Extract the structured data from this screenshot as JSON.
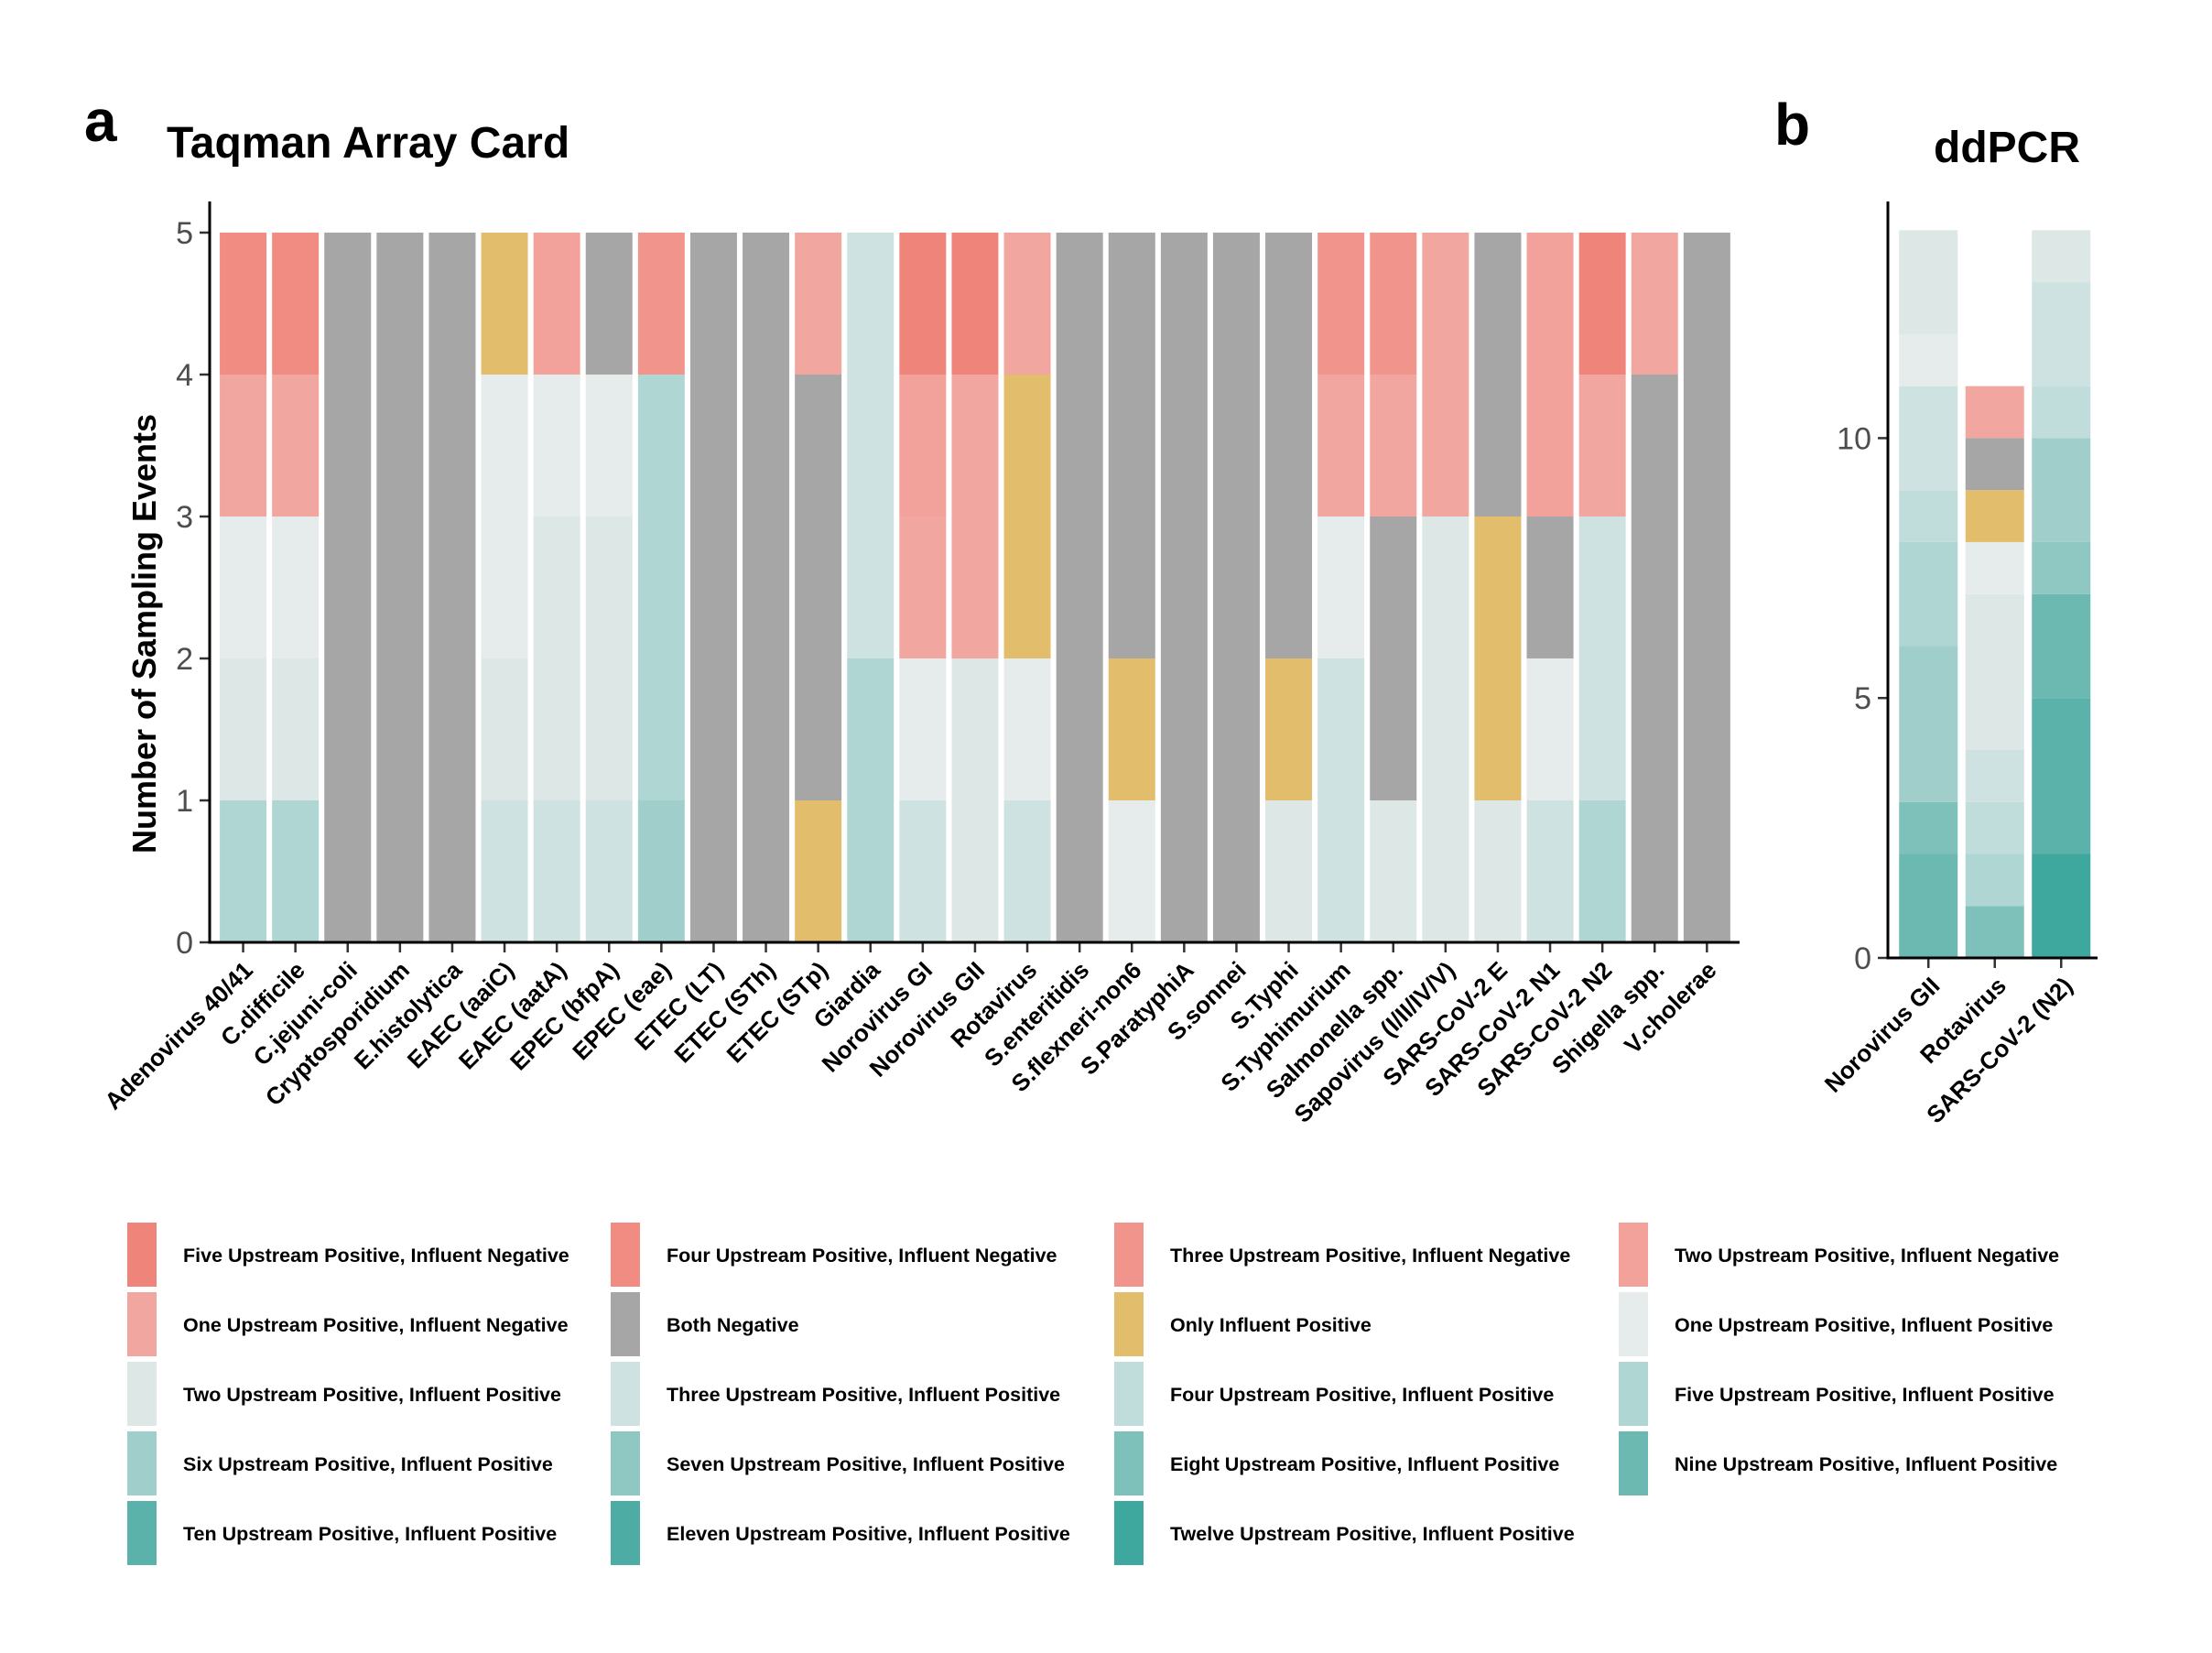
{
  "chart_data": [
    {
      "panel": "a",
      "title": "Taqman Array Card",
      "type": "bar",
      "stacked": true,
      "ylabel": "Number of Sampling Events",
      "xlabel": "",
      "ylim": [
        0,
        5
      ],
      "yticks": [
        "0",
        "1",
        "2",
        "3",
        "4",
        "5"
      ],
      "categories": [
        "Adenovirus 40/41",
        "C.difficile",
        "C.jejuni-coli",
        "Cryptosporidium",
        "E.histolytica",
        "EAEC (aaiC)",
        "EAEC (aatA)",
        "EPEC (bfpA)",
        "EPEC (eae)",
        "ETEC (LT)",
        "ETEC (STh)",
        "ETEC (STp)",
        "Giardia",
        "Norovirus GI",
        "Norovirus GII",
        "Rotavirus",
        "S.enteritidis",
        "S.flexneri-non6",
        "S.ParatyphiA",
        "S.sonnei",
        "S.Typhi",
        "S.Typhimurium",
        "Salmonella spp.",
        "Sapovirus (I/II/IV/V)",
        "SARS-CoV-2 E",
        "SARS-CoV-2 N1",
        "SARS-CoV-2 N2",
        "Shigella spp.",
        "V.cholerae"
      ],
      "stacks": [
        [
          [
            "5P",
            1
          ],
          [
            "2P",
            1
          ],
          [
            "1P",
            1
          ],
          [
            "1N",
            1
          ],
          [
            "4N",
            1
          ]
        ],
        [
          [
            "5P",
            1
          ],
          [
            "2P",
            1
          ],
          [
            "1P",
            1
          ],
          [
            "1N",
            1
          ],
          [
            "4N",
            1
          ]
        ],
        [
          [
            "BN",
            5
          ]
        ],
        [
          [
            "BN",
            5
          ]
        ],
        [
          [
            "BN",
            5
          ]
        ],
        [
          [
            "3P",
            1
          ],
          [
            "2P",
            1
          ],
          [
            "1P",
            2
          ],
          [
            "OI",
            1
          ]
        ],
        [
          [
            "3P",
            1
          ],
          [
            "2P",
            2
          ],
          [
            "1P",
            1
          ],
          [
            "2N",
            1
          ]
        ],
        [
          [
            "3P",
            1
          ],
          [
            "2P",
            2
          ],
          [
            "1P",
            1
          ],
          [
            "BN",
            1
          ]
        ],
        [
          [
            "6P",
            1
          ],
          [
            "5P",
            3
          ],
          [
            "3N",
            1
          ]
        ],
        [
          [
            "BN",
            5
          ]
        ],
        [
          [
            "BN",
            5
          ]
        ],
        [
          [
            "OI",
            1
          ],
          [
            "BN",
            3
          ],
          [
            "1N",
            1
          ]
        ],
        [
          [
            "5P",
            2
          ],
          [
            "3P",
            3
          ]
        ],
        [
          [
            "3P",
            1
          ],
          [
            "1P",
            1
          ],
          [
            "1N",
            1
          ],
          [
            "2N",
            1
          ],
          [
            "5N",
            1
          ]
        ],
        [
          [
            "2P",
            2
          ],
          [
            "1N",
            2
          ],
          [
            "5N",
            1
          ]
        ],
        [
          [
            "3P",
            1
          ],
          [
            "1P",
            1
          ],
          [
            "OI",
            2
          ],
          [
            "1N",
            1
          ]
        ],
        [
          [
            "BN",
            5
          ]
        ],
        [
          [
            "1P",
            1
          ],
          [
            "OI",
            1
          ],
          [
            "BN",
            3
          ]
        ],
        [
          [
            "BN",
            5
          ]
        ],
        [
          [
            "BN",
            5
          ]
        ],
        [
          [
            "2P",
            1
          ],
          [
            "OI",
            1
          ],
          [
            "BN",
            3
          ]
        ],
        [
          [
            "3P",
            2
          ],
          [
            "1P",
            1
          ],
          [
            "1N",
            1
          ],
          [
            "3N",
            1
          ]
        ],
        [
          [
            "2P",
            1
          ],
          [
            "BN",
            2
          ],
          [
            "1N",
            1
          ],
          [
            "3N",
            1
          ]
        ],
        [
          [
            "2P",
            3
          ],
          [
            "1N",
            2
          ]
        ],
        [
          [
            "2P",
            1
          ],
          [
            "OI",
            2
          ],
          [
            "BN",
            2
          ]
        ],
        [
          [
            "3P",
            1
          ],
          [
            "1P",
            1
          ],
          [
            "BN",
            1
          ],
          [
            "2N",
            2
          ]
        ],
        [
          [
            "5P",
            1
          ],
          [
            "3P",
            2
          ],
          [
            "1N",
            1
          ],
          [
            "5N",
            1
          ]
        ],
        [
          [
            "BN",
            4
          ],
          [
            "1N",
            1
          ]
        ],
        [
          [
            "BN",
            5
          ]
        ]
      ]
    },
    {
      "panel": "b",
      "title": "ddPCR",
      "type": "bar",
      "stacked": true,
      "xlabel": "",
      "ylabel": "",
      "ylim": [
        0,
        14.5
      ],
      "ytick_values": [
        0,
        5,
        10
      ],
      "yticks": [
        "0",
        "5",
        "10"
      ],
      "categories": [
        "Norovirus GII",
        "Rotavirus",
        "SARS-CoV-2 (N2)"
      ],
      "stacks": [
        [
          [
            "9P",
            2
          ],
          [
            "8P",
            1
          ],
          [
            "6P",
            3
          ],
          [
            "5P",
            2
          ],
          [
            "4P",
            1
          ],
          [
            "3P",
            2
          ],
          [
            "1P",
            1
          ],
          [
            "2P",
            2
          ]
        ],
        [
          [
            "8P",
            1
          ],
          [
            "5P",
            1
          ],
          [
            "4P",
            1
          ],
          [
            "3P",
            1
          ],
          [
            "2P",
            3
          ],
          [
            "1P",
            1
          ],
          [
            "OI",
            1
          ],
          [
            "BN",
            1
          ],
          [
            "1N",
            1
          ]
        ],
        [
          [
            "12P",
            2
          ],
          [
            "10P",
            3
          ],
          [
            "9P",
            2
          ],
          [
            "7P",
            1
          ],
          [
            "6P",
            2
          ],
          [
            "4P",
            1
          ],
          [
            "3P",
            2
          ],
          [
            "2P",
            1
          ]
        ]
      ]
    }
  ],
  "legend": [
    {
      "key": "5N",
      "label": "Five Upstream Positive, Influent Negative",
      "color": "#ef857a"
    },
    {
      "key": "4N",
      "label": "Four Upstream Positive, Influent Negative",
      "color": "#f08c82"
    },
    {
      "key": "3N",
      "label": "Three Upstream Positive, Influent Negative",
      "color": "#f1958c"
    },
    {
      "key": "2N",
      "label": "Two Upstream Positive, Influent Negative",
      "color": "#f2a29b"
    },
    {
      "key": "1N",
      "label": "One Upstream Positive, Influent Negative",
      "color": "#f2a6a0"
    },
    {
      "key": "BN",
      "label": "Both Negative",
      "color": "#a6a6a6"
    },
    {
      "key": "OI",
      "label": "Only Influent Positive",
      "color": "#e2bd6b"
    },
    {
      "key": "1P",
      "label": "One Upstream Positive, Influent Positive",
      "color": "#e6ecec"
    },
    {
      "key": "2P",
      "label": "Two Upstream Positive, Influent Positive",
      "color": "#dce7e6"
    },
    {
      "key": "3P",
      "label": "Three Upstream Positive, Influent Positive",
      "color": "#cee2e1"
    },
    {
      "key": "4P",
      "label": "Four Upstream Positive, Influent Positive",
      "color": "#c1dddb"
    },
    {
      "key": "5P",
      "label": "Five Upstream Positive, Influent Positive",
      "color": "#b0d6d3"
    },
    {
      "key": "6P",
      "label": "Six Upstream Positive, Influent Positive",
      "color": "#a0cfcb"
    },
    {
      "key": "7P",
      "label": "Seven Upstream Positive, Influent Positive",
      "color": "#8fc8c3"
    },
    {
      "key": "8P",
      "label": "Eight Upstream Positive, Influent Positive",
      "color": "#7ec1bb"
    },
    {
      "key": "9P",
      "label": "Nine Upstream Positive, Influent Positive",
      "color": "#6cb9b2"
    },
    {
      "key": "10P",
      "label": "Ten Upstream Positive, Influent Positive",
      "color": "#5ab2aa"
    },
    {
      "key": "11P",
      "label": "Eleven Upstream Positive, Influent Positive",
      "color": "#4daca3"
    },
    {
      "key": "12P",
      "label": "Twelve Upstream Positive, Influent Positive",
      "color": "#3fa89e"
    }
  ]
}
